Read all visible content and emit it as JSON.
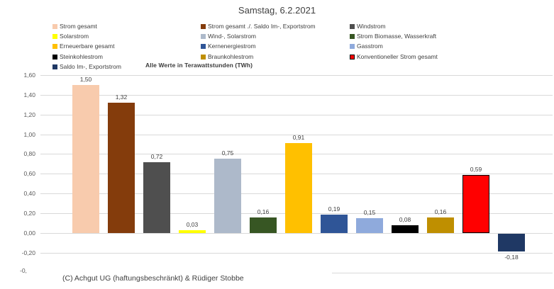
{
  "title": "Samstag, 6.2.2021",
  "units_note": "Alle Werte in Terawattstunden (TWh)",
  "footer": "(C) Achgut UG (haftungsbeschränkt) & Rüdiger Stobbe",
  "colors": {
    "background": "#FFFFFF",
    "gridline": "#D9D9D9",
    "tick_text": "#595959",
    "label_text": "#404040"
  },
  "chart_data": {
    "type": "bar",
    "title": "Samstag, 6.2.2021",
    "subtitle": "Alle Werte in Terawattstunden (TWh)",
    "xlabel": "",
    "ylabel": "TWh",
    "ylim": [
      -0.4,
      1.6
    ],
    "grid": true,
    "legend_position": "top",
    "categories": [
      "Strom gesamt",
      "Strom gesamt ./. Saldo Im-, Exportstrom",
      "Windstrom",
      "Solarstrom",
      "Wind-, Solarstrom",
      "Strom Biomasse, Wasserkraft",
      "Erneuerbare gesamt",
      "Kernenergiestrom",
      "Gasstrom",
      "Steinkohlestrom",
      "Braunkohlestrom",
      "Konventioneller Strom gesamt",
      "Saldo Im-, Exportstrom"
    ],
    "values": [
      1.5,
      1.32,
      0.72,
      0.03,
      0.75,
      0.16,
      0.91,
      0.19,
      0.15,
      0.08,
      0.16,
      0.59,
      -0.18
    ],
    "value_labels": [
      "1,50",
      "1,32",
      "0,72",
      "0,03",
      "0,75",
      "0,16",
      "0,91",
      "0,19",
      "0,15",
      "0,08",
      "0,16",
      "0,59",
      "-0,18"
    ],
    "bar_colors": [
      "#F8CBAD",
      "#843C0C",
      "#4F4F4F",
      "#FFFF00",
      "#ADB9CA",
      "#375623",
      "#FFC000",
      "#2F5597",
      "#8FAADC",
      "#000000",
      "#BF8F00",
      "#FF0000",
      "#1F3864"
    ],
    "bar_border_colors": [
      null,
      null,
      null,
      null,
      null,
      null,
      null,
      null,
      null,
      null,
      null,
      "#000000",
      null
    ],
    "y_ticks": [
      {
        "label": "1,60",
        "value": 1.6
      },
      {
        "label": "1,40",
        "value": 1.4
      },
      {
        "label": "1,20",
        "value": 1.2
      },
      {
        "label": "1,00",
        "value": 1.0
      },
      {
        "label": "0,80",
        "value": 0.8
      },
      {
        "label": "0,60",
        "value": 0.6
      },
      {
        "label": "0,40",
        "value": 0.4
      },
      {
        "label": "0,20",
        "value": 0.2
      },
      {
        "label": "0,00",
        "value": 0.0
      },
      {
        "label": "-0,20",
        "value": -0.2
      }
    ],
    "partial_bottom_tick": {
      "label": "-0,",
      "value": -0.4
    }
  }
}
